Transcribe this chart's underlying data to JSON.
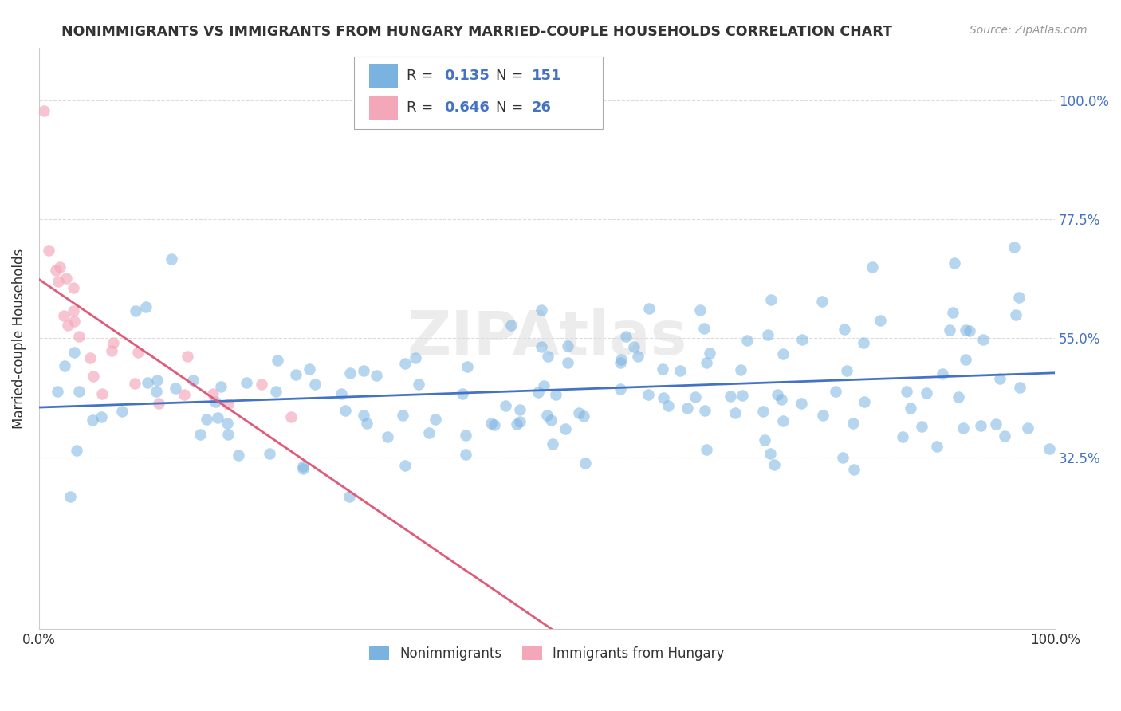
{
  "title": "NONIMMIGRANTS VS IMMIGRANTS FROM HUNGARY MARRIED-COUPLE HOUSEHOLDS CORRELATION CHART",
  "source": "Source: ZipAtlas.com",
  "ylabel": "Married-couple Households",
  "xlim": [
    0.0,
    1.0
  ],
  "ylim": [
    0.0,
    1.1
  ],
  "xtick_labels": [
    "0.0%",
    "100.0%"
  ],
  "ytick_labels": [
    "32.5%",
    "55.0%",
    "77.5%",
    "100.0%"
  ],
  "ytick_positions": [
    0.325,
    0.55,
    0.775,
    1.0
  ],
  "nonimmigrant_color": "#7ab3e0",
  "immigrant_color": "#f4a7b9",
  "nonimmigrant_line_color": "#4472c4",
  "immigrant_line_color": "#e05a7a",
  "R_nonimmigrant": 0.135,
  "N_nonimmigrant": 151,
  "R_immigrant": 0.646,
  "N_immigrant": 26,
  "watermark": "ZIPAtlas",
  "legend_label_1": "Nonimmigrants",
  "legend_label_2": "Immigrants from Hungary",
  "text_color": "#333333",
  "grid_color": "#cccccc",
  "value_color": "#4472c4"
}
